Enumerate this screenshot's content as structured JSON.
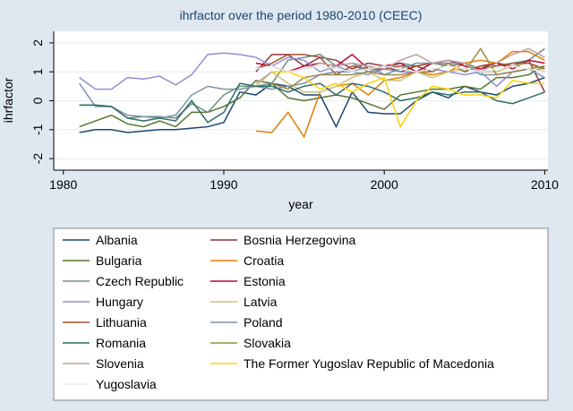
{
  "chart_data": {
    "type": "line",
    "title": "ihrfactor over the period 1980-2010 (CEEC)",
    "x_label": "year",
    "y_label": "ihrfactor",
    "x": [
      1981,
      1982,
      1983,
      1984,
      1985,
      1986,
      1987,
      1988,
      1989,
      1990,
      1991,
      1992,
      1993,
      1994,
      1995,
      1996,
      1997,
      1998,
      1999,
      2000,
      2001,
      2002,
      2003,
      2004,
      2005,
      2006,
      2007,
      2008,
      2009,
      2010
    ],
    "xlim": [
      1979.4,
      2010.2
    ],
    "xticks": [
      1980,
      1990,
      2000,
      2010
    ],
    "ylim": [
      -2.4,
      2.4
    ],
    "yticks": [
      -2,
      -1,
      0,
      1,
      2
    ],
    "grid": true,
    "series": [
      {
        "name": "Albania",
        "color": "#1a476f",
        "values": [
          -1.1,
          -1.0,
          -1.0,
          -1.1,
          -1.05,
          -1.0,
          -1.0,
          -0.95,
          -0.9,
          -0.75,
          0.3,
          0.2,
          0.6,
          0.5,
          0.2,
          0.2,
          -0.9,
          0.3,
          -0.4,
          -0.45,
          -0.45,
          0.0,
          0.3,
          0.1,
          0.5,
          0.3,
          0.2,
          0.5,
          0.6,
          0.8
        ]
      },
      {
        "name": "Bosnia Herzegovina",
        "color": "#90353b",
        "values": [
          null,
          null,
          null,
          null,
          null,
          null,
          null,
          null,
          null,
          null,
          null,
          1.0,
          1.6,
          1.6,
          1.2,
          1.5,
          1.4,
          1.1,
          1.3,
          1.2,
          1.0,
          1.2,
          1.0,
          1.3,
          1.0,
          1.2,
          1.3,
          1.2,
          1.4,
          0.3
        ]
      },
      {
        "name": "Bulgaria",
        "color": "#55752f",
        "values": [
          -0.9,
          -0.7,
          -0.5,
          -0.8,
          -0.9,
          -0.7,
          -0.9,
          -0.4,
          -0.4,
          -0.2,
          0.1,
          0.7,
          0.6,
          0.1,
          0.0,
          0.1,
          0.2,
          0.1,
          -0.1,
          -0.3,
          0.2,
          0.3,
          0.4,
          0.4,
          0.5,
          0.4,
          0.8,
          0.8,
          0.9,
          1.2
        ]
      },
      {
        "name": "Croatia",
        "color": "#e37e00",
        "values": [
          null,
          null,
          null,
          null,
          null,
          null,
          null,
          null,
          null,
          null,
          null,
          -1.05,
          -1.1,
          -0.4,
          -1.25,
          0.3,
          0.5,
          0.6,
          0.2,
          0.7,
          0.8,
          1.0,
          0.9,
          1.0,
          1.3,
          1.4,
          1.3,
          1.7,
          1.7,
          1.4
        ]
      },
      {
        "name": "Czech Republic",
        "color": "#6e8e84",
        "values": [
          -0.15,
          -0.15,
          -0.2,
          -0.6,
          -0.55,
          -0.55,
          -0.6,
          -0.1,
          -0.4,
          0.2,
          0.5,
          0.5,
          0.6,
          1.4,
          1.5,
          1.6,
          1.2,
          1.3,
          1.0,
          1.1,
          1.3,
          1.2,
          1.3,
          1.2,
          1.3,
          1.1,
          1.2,
          1.3,
          1.4,
          1.8
        ]
      },
      {
        "name": "Estonia",
        "color": "#c10534",
        "values": [
          null,
          null,
          null,
          null,
          null,
          null,
          null,
          null,
          null,
          null,
          null,
          1.3,
          1.2,
          1.0,
          1.2,
          1.3,
          1.2,
          1.6,
          1.1,
          1.2,
          1.3,
          1.0,
          1.3,
          1.4,
          1.2,
          1.1,
          1.3,
          1.1,
          1.4,
          1.3
        ]
      },
      {
        "name": "Hungary",
        "color": "#938dd2",
        "values": [
          0.8,
          0.4,
          0.4,
          0.8,
          0.75,
          0.85,
          0.55,
          0.9,
          1.6,
          1.65,
          1.6,
          1.5,
          1.2,
          1.5,
          1.4,
          1.0,
          1.2,
          1.0,
          0.9,
          1.1,
          1.0,
          1.0,
          1.1,
          1.0,
          0.9,
          1.0,
          0.5,
          1.0,
          1.1,
          1.0
        ]
      },
      {
        "name": "Latvia",
        "color": "#cac27e",
        "values": [
          null,
          null,
          null,
          null,
          null,
          null,
          null,
          null,
          null,
          null,
          null,
          0.5,
          1.0,
          0.6,
          0.3,
          0.3,
          0.5,
          0.8,
          1.0,
          0.7,
          0.7,
          1.0,
          0.8,
          1.0,
          1.1,
          1.0,
          1.0,
          1.2,
          1.3,
          1.0
        ]
      },
      {
        "name": "Lithuania",
        "color": "#a0522d",
        "values": [
          null,
          null,
          null,
          null,
          null,
          null,
          null,
          null,
          null,
          null,
          null,
          1.1,
          1.3,
          1.6,
          1.6,
          1.5,
          0.9,
          1.2,
          1.1,
          1.1,
          1.2,
          1.2,
          1.3,
          1.3,
          1.0,
          1.2,
          1.2,
          1.3,
          1.3,
          1.1
        ]
      },
      {
        "name": "Poland",
        "color": "#7b92a8",
        "values": [
          0.6,
          -0.2,
          -0.2,
          -0.5,
          -0.55,
          -0.6,
          -0.5,
          0.2,
          0.5,
          0.4,
          0.4,
          0.5,
          0.4,
          0.5,
          0.6,
          0.9,
          1.0,
          1.0,
          1.2,
          0.9,
          1.1,
          1.3,
          1.3,
          1.3,
          1.3,
          0.9,
          0.9,
          1.0,
          1.1,
          0.8
        ]
      },
      {
        "name": "Romania",
        "color": "#2d6d66",
        "values": [
          -0.15,
          -0.15,
          -0.2,
          -0.6,
          -0.7,
          -0.6,
          -0.7,
          0.0,
          -0.75,
          -0.4,
          0.6,
          0.5,
          0.5,
          0.3,
          0.5,
          0.6,
          0.2,
          0.6,
          0.5,
          0.3,
          0.0,
          0.1,
          0.3,
          0.2,
          0.3,
          0.3,
          0.0,
          -0.1,
          0.1,
          0.3
        ]
      },
      {
        "name": "Slovakia",
        "color": "#9c8847",
        "values": [
          null,
          null,
          null,
          null,
          null,
          null,
          null,
          null,
          null,
          null,
          null,
          null,
          0.6,
          0.4,
          0.8,
          0.9,
          0.9,
          0.9,
          1.0,
          0.9,
          0.9,
          1.0,
          1.0,
          1.3,
          1.0,
          1.8,
          0.9,
          1.0,
          1.1,
          1.2
        ]
      },
      {
        "name": "Slovenia",
        "color": "#bfa19c",
        "values": [
          null,
          null,
          null,
          null,
          null,
          null,
          null,
          null,
          null,
          null,
          null,
          0.6,
          1.0,
          1.0,
          1.1,
          1.3,
          1.2,
          1.3,
          1.2,
          1.1,
          1.4,
          1.6,
          1.3,
          1.4,
          1.3,
          1.0,
          1.3,
          1.6,
          1.8,
          1.5
        ]
      },
      {
        "name": "The Former Yugoslav Republic of Macedonia",
        "color": "#ffd200",
        "values": [
          null,
          null,
          null,
          null,
          null,
          null,
          null,
          null,
          null,
          null,
          null,
          null,
          1.0,
          1.0,
          0.8,
          0.4,
          0.6,
          0.3,
          0.6,
          0.8,
          -0.9,
          0.0,
          0.5,
          0.4,
          0.2,
          0.2,
          0.1,
          0.7,
          0.6,
          0.6
        ]
      },
      {
        "name": "Yugoslavia",
        "color": "#e6edf1",
        "values": [
          null,
          null,
          null,
          null,
          null,
          null,
          null,
          null,
          null,
          null,
          null,
          1.1,
          1.2,
          1.0,
          1.1,
          1.2,
          1.1,
          1.0,
          1.1,
          1.2,
          1.1,
          1.0,
          1.1,
          1.2,
          1.1,
          1.0,
          1.1,
          1.2,
          1.1,
          1.0
        ]
      }
    ]
  }
}
